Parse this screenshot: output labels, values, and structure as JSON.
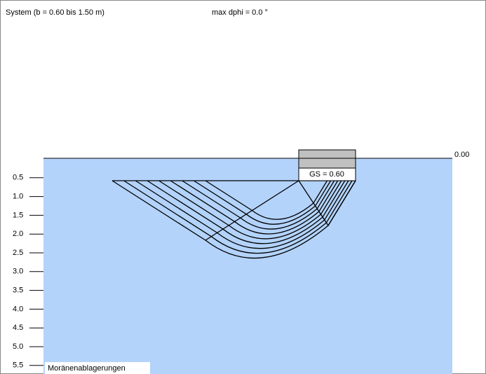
{
  "header": {
    "system": "System (b = 0.60 bis 1.50 m)",
    "dphi": "max dphi = 0.0 °"
  },
  "ground_level": {
    "value": 0,
    "label": "0.00"
  },
  "depth_ticks": [
    {
      "value": 0.5,
      "label": "0.5"
    },
    {
      "value": 1.0,
      "label": "1.0"
    },
    {
      "value": 1.5,
      "label": "1.5"
    },
    {
      "value": 2.0,
      "label": "2.0"
    },
    {
      "value": 2.5,
      "label": "2.5"
    },
    {
      "value": 3.0,
      "label": "3.0"
    },
    {
      "value": 3.5,
      "label": "3.5"
    },
    {
      "value": 4.0,
      "label": "4.0"
    },
    {
      "value": 4.5,
      "label": "4.5"
    },
    {
      "value": 5.0,
      "label": "5.0"
    },
    {
      "value": 5.5,
      "label": "5.5"
    }
  ],
  "foundation": {
    "label": "GS = 0.60"
  },
  "soil_layer": {
    "label": "Moränenablagerungen"
  }
}
